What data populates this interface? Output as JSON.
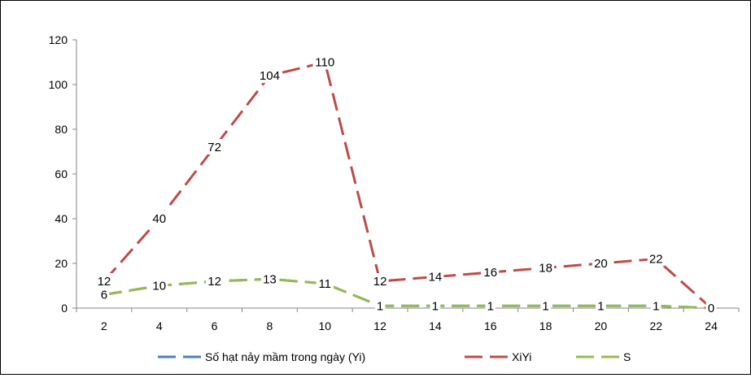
{
  "chart_data": {
    "type": "line",
    "x": [
      2,
      4,
      6,
      8,
      10,
      12,
      14,
      16,
      18,
      20,
      22,
      24
    ],
    "ylim": [
      0,
      120
    ],
    "yticks": [
      0,
      20,
      40,
      60,
      80,
      100,
      120
    ],
    "xticks": [
      "2",
      "4",
      "6",
      "8",
      "10",
      "12",
      "14",
      "16",
      "18",
      "20",
      "22",
      "24"
    ],
    "legend_position": "bottom",
    "grid": false,
    "series": [
      {
        "name": "Số hạt nảy mầm trong ngày (Yi)",
        "color": "#4a7ebb",
        "values": [
          6,
          10,
          12,
          13,
          11,
          1,
          1,
          1,
          1,
          1,
          1,
          0
        ],
        "labels": [
          "6",
          "10",
          "12",
          "13",
          "11",
          "1",
          "1",
          "1",
          "1",
          "1",
          "1",
          "0"
        ]
      },
      {
        "name": "XiYi",
        "color": "#be4b48",
        "values": [
          12,
          40,
          72,
          104,
          110,
          12,
          14,
          16,
          18,
          20,
          22,
          0
        ],
        "labels": [
          "12",
          "40",
          "72",
          "104",
          "110",
          "12",
          "14",
          "16",
          "18",
          "20",
          "22",
          "0"
        ]
      },
      {
        "name": "S",
        "color": "#98b954",
        "values": [
          6,
          10,
          12,
          13,
          11,
          1,
          1,
          1,
          1,
          1,
          1,
          0
        ],
        "labels": [
          "6",
          "10",
          "12",
          "13",
          "11",
          "1",
          "1",
          "1",
          "1",
          "1",
          "1",
          "0"
        ]
      }
    ]
  }
}
